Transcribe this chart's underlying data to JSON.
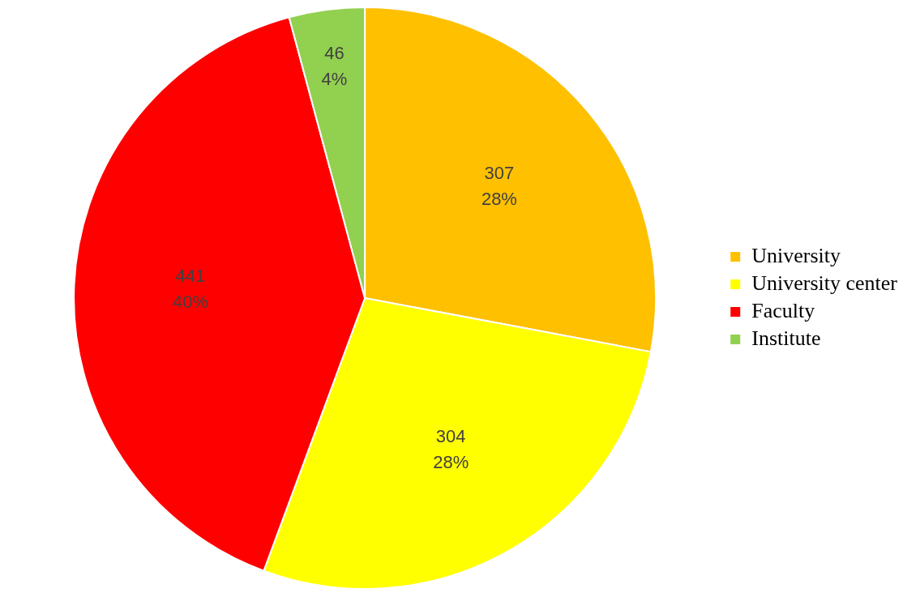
{
  "chart_data": {
    "type": "pie",
    "categories": [
      "University",
      "University center",
      "Faculty",
      "Institute"
    ],
    "values": [
      307,
      304,
      441,
      46
    ],
    "colors": [
      "#ffc000",
      "#ffff00",
      "#ff0000",
      "#92d050"
    ],
    "value_labels": [
      "307\n28%",
      "304\n28%",
      "441\n40%",
      "46\n4%"
    ],
    "legend": "right"
  }
}
